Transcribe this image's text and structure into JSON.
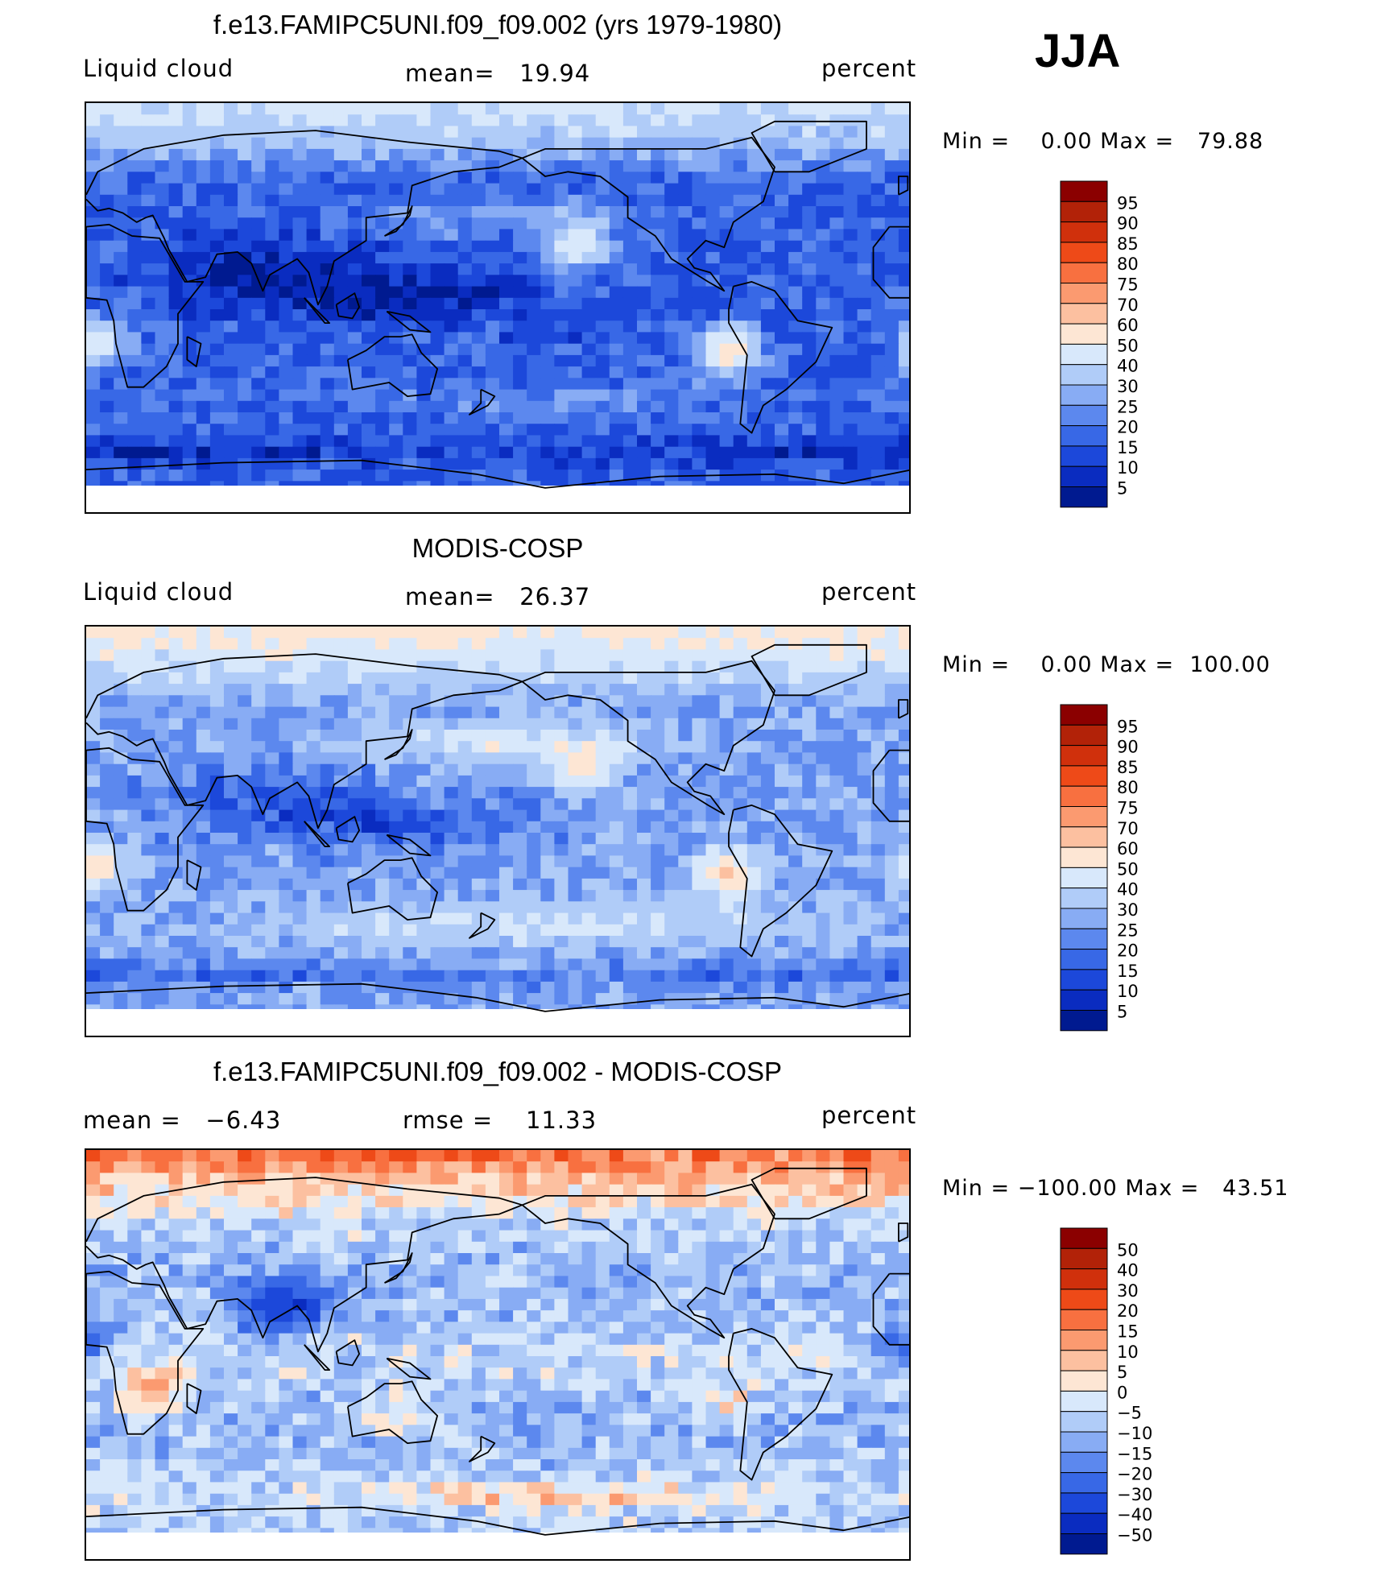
{
  "season": "JJA",
  "panels": [
    {
      "title": "f.e13.FAMIPC5UNI.f09_f09.002 (yrs 1979-1980)",
      "left_label": "Liquid cloud",
      "center_label": "mean=   19.94",
      "right_label": "percent",
      "minmax": "Min =    0.00 Max =   79.88",
      "colorbar_labels": [
        "95",
        "90",
        "85",
        "80",
        "75",
        "70",
        "60",
        "50",
        "40",
        "30",
        "25",
        "20",
        "15",
        "10",
        "5"
      ],
      "colorbar_colors": [
        "#8b0000",
        "#b22208",
        "#d0300c",
        "#ee4a18",
        "#f87040",
        "#fb9a70",
        "#fcc0a0",
        "#fde6d4",
        "#d8e8fb",
        "#b0ccf8",
        "#88acf4",
        "#5c88ee",
        "#3868e6",
        "#1c48da",
        "#0a2cc0",
        "#001a90"
      ],
      "field": "model"
    },
    {
      "title": "MODIS-COSP",
      "left_label": "Liquid cloud",
      "center_label": "mean=   26.37",
      "right_label": "percent",
      "minmax": "Min =    0.00 Max =  100.00",
      "colorbar_labels": [
        "95",
        "90",
        "85",
        "80",
        "75",
        "70",
        "60",
        "50",
        "40",
        "30",
        "25",
        "20",
        "15",
        "10",
        "5"
      ],
      "colorbar_colors": [
        "#8b0000",
        "#b22208",
        "#d0300c",
        "#ee4a18",
        "#f87040",
        "#fb9a70",
        "#fcc0a0",
        "#fde6d4",
        "#d8e8fb",
        "#b0ccf8",
        "#88acf4",
        "#5c88ee",
        "#3868e6",
        "#1c48da",
        "#0a2cc0",
        "#001a90"
      ],
      "field": "obs"
    },
    {
      "title": "f.e13.FAMIPC5UNI.f09_f09.002 - MODIS-COSP",
      "left_label": "mean =   −6.43",
      "center_label": "rmse =    11.33",
      "right_label": "percent",
      "minmax": "Min = −100.00 Max =   43.51",
      "colorbar_labels": [
        "50",
        "40",
        "30",
        "20",
        "15",
        "10",
        "5",
        "0",
        "−5",
        "−10",
        "−15",
        "−20",
        "−30",
        "−40",
        "−50"
      ],
      "colorbar_colors": [
        "#8b0000",
        "#b22208",
        "#d0300c",
        "#ee4a18",
        "#f87040",
        "#fb9a70",
        "#fcc0a0",
        "#fde6d4",
        "#d8e8fb",
        "#b0ccf8",
        "#88acf4",
        "#5c88ee",
        "#3868e6",
        "#1c48da",
        "#0a2cc0",
        "#001a90"
      ],
      "field": "diff"
    }
  ]
}
